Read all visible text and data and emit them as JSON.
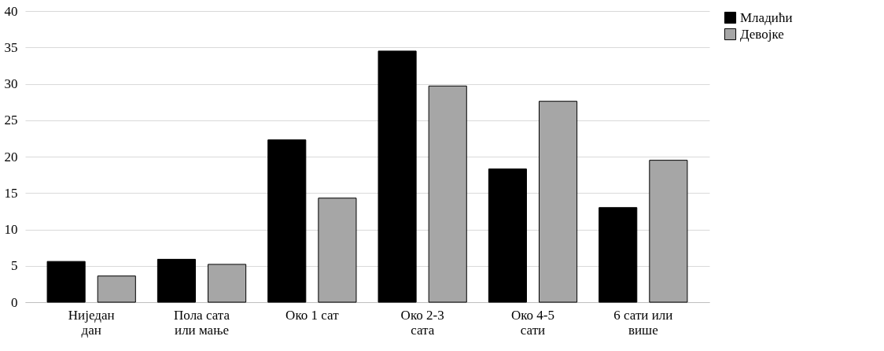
{
  "chart_data": {
    "type": "bar",
    "categories": [
      "Ниједан дан",
      "Пола сата или мање",
      "Око 1 сат",
      "Око 2-3 сата",
      "Око 4-5 сати",
      "6 сати или више"
    ],
    "series": [
      {
        "name": "Младићи",
        "color": "#000000",
        "values": [
          5.6,
          5.9,
          22.3,
          34.5,
          18.3,
          13.0
        ]
      },
      {
        "name": "Девојке",
        "color": "#a6a6a6",
        "values": [
          3.6,
          5.2,
          14.3,
          29.7,
          27.6,
          19.5
        ]
      }
    ],
    "ylim": [
      0,
      40
    ],
    "yticks": [
      0,
      5,
      10,
      15,
      20,
      25,
      30,
      35,
      40
    ],
    "grid": "y",
    "legend": "right"
  }
}
